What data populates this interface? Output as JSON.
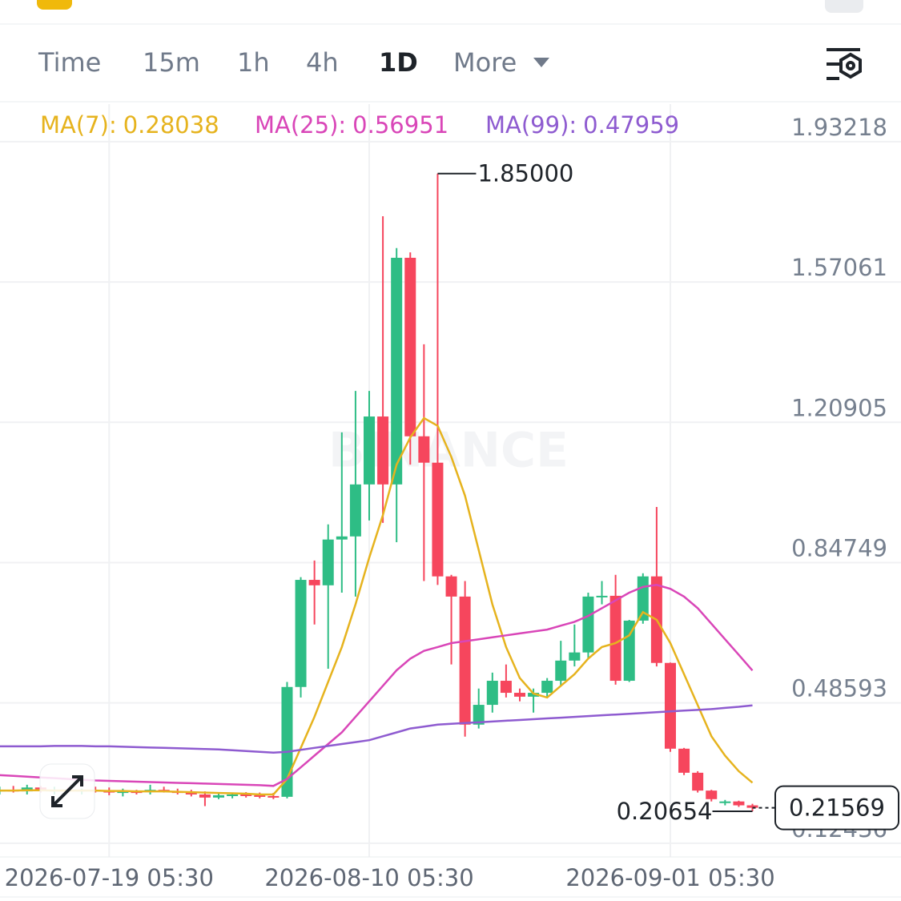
{
  "toolbar": {
    "tabs": [
      "Time",
      "15m",
      "1h",
      "4h",
      "1D",
      "More"
    ],
    "active": 4
  },
  "chart_data": {
    "type": "candlestick",
    "watermark": "BINANCE",
    "categories": [
      null,
      null,
      null,
      null,
      null,
      null,
      null,
      null,
      "2026-07-19 05:30",
      null,
      null,
      null,
      null,
      null,
      null,
      null,
      null,
      null,
      null,
      null,
      null,
      null,
      null,
      null,
      null,
      null,
      null,
      "2026-08-10 05:30",
      null,
      null,
      null,
      null,
      null,
      null,
      null,
      null,
      null,
      null,
      null,
      null,
      null,
      null,
      null,
      null,
      null,
      null,
      null,
      null,
      null,
      "2026-09-01 05:30",
      null,
      null,
      null,
      null,
      null,
      null
    ],
    "open": [
      0.26,
      0.262,
      0.258,
      0.268,
      0.26,
      0.262,
      0.258,
      0.262,
      0.26,
      0.255,
      0.258,
      0.256,
      0.262,
      0.258,
      0.256,
      0.25,
      0.242,
      0.248,
      0.25,
      0.248,
      0.246,
      0.244,
      0.527,
      0.803,
      0.789,
      0.907,
      0.915,
      1.049,
      1.224,
      1.049,
      1.633,
      1.173,
      1.105,
      0.812,
      0.76,
      0.43,
      0.481,
      0.543,
      0.512,
      0.502,
      0.512,
      0.543,
      0.595,
      0.616,
      0.76,
      0.762,
      0.543,
      0.698,
      0.812,
      0.589,
      0.368,
      0.306,
      0.26,
      0.228,
      0.232,
      0.222
    ],
    "high": [
      0.27,
      0.272,
      0.275,
      0.272,
      0.27,
      0.268,
      0.265,
      0.27,
      0.268,
      0.265,
      0.262,
      0.275,
      0.27,
      0.265,
      0.262,
      0.258,
      0.252,
      0.255,
      0.256,
      0.255,
      0.254,
      0.54,
      0.81,
      0.853,
      0.946,
      1.183,
      1.29,
      1.29,
      1.74,
      1.658,
      1.647,
      1.41,
      1.85,
      0.816,
      0.8,
      0.523,
      0.564,
      0.585,
      0.523,
      0.523,
      0.55,
      0.646,
      0.688,
      0.77,
      0.8,
      0.816,
      0.7,
      0.82,
      0.991,
      0.59,
      0.37,
      0.31,
      0.262,
      0.236,
      0.234,
      0.226
    ],
    "low": [
      0.25,
      0.255,
      0.25,
      0.255,
      0.25,
      0.255,
      0.25,
      0.255,
      0.248,
      0.245,
      0.25,
      0.25,
      0.255,
      0.25,
      0.245,
      0.22,
      0.238,
      0.24,
      0.242,
      0.24,
      0.238,
      0.24,
      0.5,
      0.688,
      0.574,
      0.77,
      0.76,
      0.956,
      0.95,
      0.9,
      1.1,
      0.8,
      0.79,
      0.585,
      0.399,
      0.42,
      0.461,
      0.5,
      0.49,
      0.461,
      0.5,
      0.53,
      0.58,
      0.6,
      0.74,
      0.533,
      0.54,
      0.69,
      0.58,
      0.36,
      0.3,
      0.255,
      0.232,
      0.222,
      0.218,
      0.20654
    ],
    "close": [
      0.262,
      0.258,
      0.268,
      0.26,
      0.262,
      0.258,
      0.262,
      0.26,
      0.255,
      0.258,
      0.256,
      0.262,
      0.258,
      0.256,
      0.25,
      0.242,
      0.248,
      0.25,
      0.248,
      0.246,
      0.244,
      0.527,
      0.803,
      0.789,
      0.907,
      0.915,
      1.049,
      1.224,
      1.049,
      1.633,
      1.173,
      1.105,
      0.812,
      0.76,
      0.43,
      0.481,
      0.543,
      0.512,
      0.502,
      0.512,
      0.543,
      0.595,
      0.616,
      0.76,
      0.762,
      0.543,
      0.698,
      0.812,
      0.589,
      0.368,
      0.306,
      0.26,
      0.238,
      0.232,
      0.222,
      0.21569
    ],
    "up_color": "#2ebd85",
    "down_color": "#f6465d",
    "series": [
      {
        "name": "MA(7):",
        "color": "#e6b31e",
        "values": [
          0.26,
          0.26,
          0.261,
          0.261,
          0.26,
          0.26,
          0.26,
          0.26,
          0.259,
          0.259,
          0.258,
          0.258,
          0.258,
          0.257,
          0.256,
          0.255,
          0.254,
          0.253,
          0.252,
          0.25,
          0.25,
          0.29,
          0.37,
          0.45,
          0.54,
          0.63,
          0.74,
          0.86,
          0.97,
          1.1,
          1.17,
          1.22,
          1.2,
          1.12,
          1.02,
          0.88,
          0.74,
          0.63,
          0.55,
          0.51,
          0.5,
          0.53,
          0.56,
          0.6,
          0.63,
          0.64,
          0.66,
          0.72,
          0.7,
          0.64,
          0.56,
          0.48,
          0.4,
          0.35,
          0.31,
          0.28038
        ]
      },
      {
        "name": "MA(25):",
        "color": "#d946b8",
        "values": [
          0.3,
          0.298,
          0.296,
          0.294,
          0.292,
          0.29,
          0.288,
          0.286,
          0.285,
          0.284,
          0.283,
          0.282,
          0.281,
          0.28,
          0.279,
          0.278,
          0.277,
          0.276,
          0.275,
          0.274,
          0.272,
          0.29,
          0.32,
          0.35,
          0.38,
          0.41,
          0.45,
          0.49,
          0.53,
          0.57,
          0.6,
          0.62,
          0.63,
          0.64,
          0.645,
          0.65,
          0.655,
          0.66,
          0.665,
          0.67,
          0.675,
          0.685,
          0.695,
          0.71,
          0.73,
          0.75,
          0.77,
          0.785,
          0.79,
          0.78,
          0.76,
          0.73,
          0.69,
          0.65,
          0.61,
          0.56951
        ]
      },
      {
        "name": "MA(99):",
        "color": "#8e5bd0",
        "values": [
          0.374,
          0.374,
          0.374,
          0.374,
          0.375,
          0.375,
          0.375,
          0.374,
          0.374,
          0.373,
          0.372,
          0.371,
          0.37,
          0.369,
          0.368,
          0.367,
          0.366,
          0.364,
          0.362,
          0.36,
          0.358,
          0.36,
          0.365,
          0.37,
          0.375,
          0.38,
          0.385,
          0.39,
          0.4,
          0.41,
          0.42,
          0.425,
          0.43,
          0.432,
          0.434,
          0.436,
          0.438,
          0.44,
          0.442,
          0.444,
          0.446,
          0.448,
          0.45,
          0.452,
          0.454,
          0.456,
          0.458,
          0.46,
          0.462,
          0.464,
          0.466,
          0.468,
          0.47,
          0.473,
          0.476,
          0.47959
        ]
      }
    ],
    "ylim": [
      0.089,
      2.029
    ],
    "yticks": [
      1.93218,
      1.57061,
      1.20905,
      0.84749,
      0.48593,
      0.12436
    ],
    "grid": true,
    "annotations": {
      "high": {
        "value": 1.85,
        "label": "1.85000"
      },
      "low": {
        "value": 0.20654,
        "label": "0.20654"
      },
      "last": {
        "value": 0.21569,
        "label": "0.21569"
      }
    }
  }
}
